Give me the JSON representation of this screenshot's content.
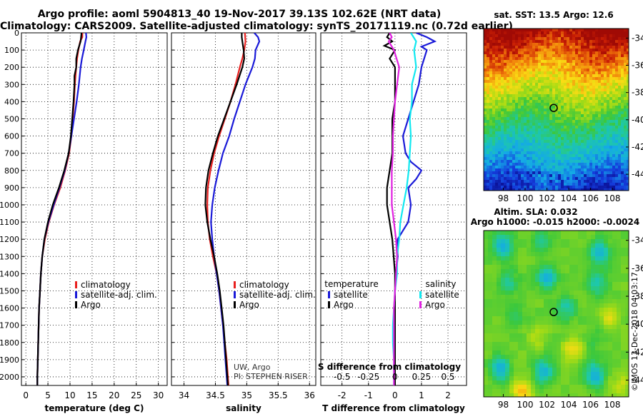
{
  "header": {
    "line1": "Argo profile: aoml 5904813_40 19-Nov-2017 39.13S 102.62E (NRT data)",
    "line2": "Climatology: CARS2009. Satellite-adjusted climatology: synTS_20171119.nc (0.72d earlier)"
  },
  "colors": {
    "climatology": "#e8201f",
    "satellite": "#1a1ad8",
    "argo": "#000000",
    "argo_salinity_diff": "#e020e0",
    "satellite_salinity_diff": "#10e8f0"
  },
  "credits": {
    "uw": "UW, Argo",
    "pi": "PI: STEPHEN RISER",
    "imos": "©IMOS 13-Dec-2018 04:03:17"
  },
  "chart_data": [
    {
      "type": "line",
      "id": "temperature",
      "xlabel": "temperature (deg C)",
      "xlim": [
        -1,
        32
      ],
      "ylim": [
        2050,
        0
      ],
      "xticks": [
        0,
        5,
        10,
        15,
        20,
        25,
        30
      ],
      "yticks": [
        0,
        100,
        200,
        300,
        400,
        500,
        600,
        700,
        800,
        900,
        1000,
        1100,
        1200,
        1300,
        1400,
        1500,
        1600,
        1700,
        1800,
        1900,
        2000
      ],
      "grid": true,
      "legend": [
        "climatology",
        "satellite-adj. clim.",
        "Argo"
      ],
      "series": [
        {
          "name": "climatology",
          "color": "#e8201f",
          "depth": [
            0,
            25,
            50,
            100,
            150,
            200,
            300,
            400,
            500,
            600,
            700,
            800,
            900,
            1000,
            1100,
            1200,
            1300,
            1400,
            1500,
            1600,
            1700,
            1800,
            1900,
            2000,
            2050
          ],
          "values": [
            12.8,
            12.8,
            12.3,
            11.9,
            11.6,
            11.4,
            11.1,
            10.9,
            10.6,
            10.3,
            9.8,
            8.9,
            7.8,
            6.4,
            5.2,
            4.3,
            3.7,
            3.4,
            3.2,
            3.0,
            2.9,
            2.8,
            2.7,
            2.6,
            2.6
          ]
        },
        {
          "name": "satellite-adj. clim.",
          "color": "#1a1ad8",
          "depth": [
            0,
            25,
            50,
            100,
            150,
            200,
            300,
            400,
            500,
            600,
            700,
            800,
            900,
            1000,
            1100,
            1200,
            1300,
            1400,
            1500,
            1600,
            1700,
            1800,
            1900,
            2000,
            2050
          ],
          "values": [
            13.6,
            13.7,
            13.5,
            13.1,
            12.7,
            12.4,
            12.0,
            11.5,
            10.9,
            10.3,
            9.7,
            8.8,
            7.6,
            6.3,
            5.1,
            4.2,
            3.7,
            3.4,
            3.2,
            3.0,
            2.9,
            2.8,
            2.7,
            2.6,
            2.6
          ]
        },
        {
          "name": "Argo",
          "color": "#000000",
          "depth": [
            0,
            25,
            50,
            100,
            150,
            200,
            250,
            300,
            400,
            500,
            600,
            700,
            800,
            900,
            1000,
            1100,
            1200,
            1300,
            1400,
            1500,
            1600,
            1700,
            1800,
            1900,
            2000,
            2050
          ],
          "values": [
            12.6,
            12.5,
            12.4,
            11.8,
            11.4,
            11.4,
            11.0,
            11.0,
            10.8,
            10.5,
            10.2,
            9.7,
            8.7,
            7.5,
            6.1,
            5.0,
            4.2,
            3.7,
            3.4,
            3.2,
            3.0,
            2.9,
            2.8,
            2.7,
            2.6,
            2.6
          ]
        }
      ]
    },
    {
      "type": "line",
      "id": "salinity",
      "xlabel": "salinity",
      "xlim": [
        33.8,
        36.1
      ],
      "ylim": [
        2050,
        0
      ],
      "xticks": [
        34,
        34.5,
        35,
        35.5,
        36
      ],
      "xticklabels": [
        "34",
        "34.5",
        "35",
        "35.5",
        "36"
      ],
      "grid": true,
      "legend": [
        "climatology",
        "satellite-adj. clim.",
        "Argo"
      ],
      "series": [
        {
          "name": "climatology",
          "color": "#e8201f",
          "depth": [
            0,
            50,
            100,
            150,
            200,
            300,
            400,
            500,
            600,
            700,
            800,
            900,
            1000,
            1100,
            1200,
            1300,
            1400,
            1500,
            1600,
            1700,
            1800,
            1900,
            2000,
            2050
          ],
          "values": [
            34.97,
            34.98,
            34.96,
            34.93,
            34.89,
            34.82,
            34.74,
            34.65,
            34.56,
            34.48,
            34.42,
            34.38,
            34.37,
            34.38,
            34.41,
            34.46,
            34.52,
            34.56,
            34.59,
            34.62,
            34.65,
            34.68,
            34.7,
            34.71
          ]
        },
        {
          "name": "satellite-adj. clim.",
          "color": "#1a1ad8",
          "depth": [
            0,
            25,
            50,
            100,
            150,
            200,
            300,
            400,
            500,
            600,
            700,
            800,
            900,
            1000,
            1100,
            1200,
            1300,
            1400,
            1500,
            1600,
            1700,
            1800,
            1900,
            2000,
            2050
          ],
          "values": [
            35.12,
            35.18,
            35.2,
            35.14,
            35.13,
            35.09,
            34.98,
            34.89,
            34.8,
            34.72,
            34.62,
            34.55,
            34.49,
            34.45,
            34.43,
            34.45,
            34.48,
            34.52,
            34.56,
            34.59,
            34.62,
            34.64,
            34.66,
            34.68,
            34.69
          ]
        },
        {
          "name": "Argo",
          "color": "#000000",
          "depth": [
            0,
            25,
            50,
            100,
            150,
            200,
            300,
            400,
            500,
            600,
            700,
            800,
            900,
            1000,
            1100,
            1200,
            1300,
            1400,
            1500,
            1600,
            1700,
            1800,
            1900,
            2000,
            2050
          ],
          "values": [
            34.92,
            34.92,
            34.93,
            34.95,
            34.96,
            34.93,
            34.84,
            34.74,
            34.64,
            34.54,
            34.46,
            34.39,
            34.35,
            34.34,
            34.37,
            34.42,
            34.48,
            34.53,
            34.57,
            34.6,
            34.63,
            34.65,
            34.67,
            34.69,
            34.7
          ]
        }
      ]
    },
    {
      "type": "line",
      "id": "difference",
      "xlabel": "T difference from climatology",
      "xlabel2": "S difference from climatology",
      "xlim": [
        -2.8,
        2.7
      ],
      "ylim": [
        2050,
        0
      ],
      "xticks": [
        -2,
        -1,
        0,
        1,
        2
      ],
      "x2ticks": [
        -0.5,
        -0.25,
        0,
        0.25,
        0.5
      ],
      "x2ticklabels": [
        "-0.5",
        "-0.25",
        "0",
        "0.25",
        "0.5"
      ],
      "grid": true,
      "legend_left_title": "temperature",
      "legend_right_title": "salinity",
      "legend_left": [
        "satellite",
        "Argo"
      ],
      "legend_right": [
        "satellite",
        "Argo"
      ],
      "series": [
        {
          "name": "T satellite",
          "color": "#1a1ad8",
          "depth": [
            0,
            25,
            50,
            80,
            100,
            150,
            200,
            300,
            400,
            500,
            600,
            700,
            750,
            800,
            850,
            900,
            1000,
            1100,
            1150,
            1200,
            1300,
            1400,
            1500,
            1600,
            1700,
            1800,
            1900,
            2000,
            2050
          ],
          "values": [
            0.8,
            1.2,
            1.5,
            1.0,
            1.2,
            1.1,
            1.0,
            0.9,
            0.7,
            0.5,
            0.3,
            0.4,
            0.6,
            1.0,
            0.8,
            0.5,
            0.6,
            0.5,
            0.3,
            0.1,
            0.1,
            0.05,
            0.0,
            0.0,
            0.0,
            0.0,
            0.0,
            0.0,
            0.0
          ]
        },
        {
          "name": "T Argo",
          "color": "#000000",
          "depth": [
            0,
            25,
            50,
            75,
            100,
            150,
            200,
            300,
            400,
            500,
            600,
            700,
            800,
            900,
            1000,
            1100,
            1200,
            1300,
            1400,
            1500,
            1600,
            1700,
            1800,
            1900,
            2000,
            2050
          ],
          "values": [
            -0.2,
            -0.3,
            -0.1,
            -0.4,
            0.0,
            -0.2,
            0.0,
            0.0,
            0.0,
            -0.1,
            -0.1,
            -0.1,
            -0.2,
            -0.3,
            -0.3,
            -0.2,
            -0.1,
            -0.05,
            0.0,
            0.0,
            0.0,
            0.0,
            0.0,
            0.0,
            0.0,
            0.0
          ]
        },
        {
          "name": "S satellite",
          "color": "#10e8f0",
          "depth": [
            0,
            50,
            100,
            200,
            300,
            400,
            500,
            600,
            700,
            800,
            900,
            1000,
            1100,
            1200,
            1300,
            1400,
            1500,
            1600,
            1700,
            1800,
            1900,
            2000,
            2050
          ],
          "values": [
            0.15,
            0.2,
            0.18,
            0.2,
            0.16,
            0.16,
            0.14,
            0.15,
            0.14,
            0.13,
            0.11,
            0.08,
            0.05,
            0.04,
            0.02,
            0.02,
            0.0,
            -0.01,
            -0.02,
            -0.02,
            -0.01,
            -0.01,
            -0.01
          ]
        },
        {
          "name": "S Argo",
          "color": "#e020e0",
          "depth": [
            0,
            25,
            50,
            100,
            200,
            300,
            400,
            500,
            600,
            700,
            800,
            900,
            1000,
            1100,
            1200,
            1300,
            1400,
            1500,
            1600,
            1700,
            1800,
            1900,
            2000,
            2050
          ],
          "values": [
            -0.05,
            -0.03,
            -0.06,
            -0.01,
            0.04,
            0.02,
            0.0,
            -0.01,
            -0.02,
            -0.02,
            -0.03,
            -0.03,
            -0.03,
            -0.01,
            0.01,
            0.02,
            0.01,
            0.0,
            -0.01,
            -0.01,
            -0.01,
            -0.01,
            -0.01,
            -0.01
          ]
        }
      ]
    },
    {
      "type": "heatmap",
      "id": "sst_map",
      "title": "sat. SST: 13.5  Argo: 12.6",
      "xticks": [
        98,
        100,
        102,
        104,
        106,
        108
      ],
      "yticks": [
        -34,
        -36,
        -38,
        -40,
        -42,
        -44
      ],
      "xlim": [
        96.2,
        109.5
      ],
      "ylim": [
        -45.2,
        -33.3
      ],
      "marker": {
        "lon": 102.62,
        "lat": -39.13
      }
    },
    {
      "type": "heatmap",
      "id": "sla_map",
      "title": "Altim. SLA: 0.032",
      "subtitle": "Argo h1000: -0.015 h2000: -0.0024",
      "xticks": [
        98,
        100,
        102,
        104,
        106,
        108
      ],
      "yticks": [
        -34,
        -36,
        -38,
        -40,
        -42,
        -44
      ],
      "xlim": [
        96.2,
        109.5
      ],
      "ylim": [
        -45.2,
        -33.3
      ],
      "marker": {
        "lon": 102.62,
        "lat": -39.13
      }
    }
  ]
}
